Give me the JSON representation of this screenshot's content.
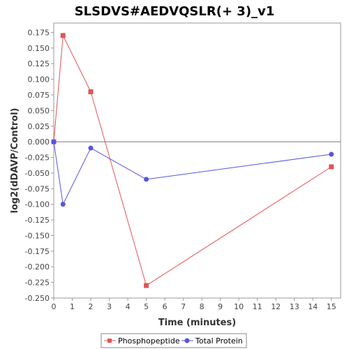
{
  "chart_data": {
    "type": "line",
    "title": "SLSDVS#AEDVQSLR(+ 3)_v1",
    "xlabel": "Time (minutes)",
    "ylabel": "log2(dDAVP/Control)",
    "xlim": [
      0,
      15.5
    ],
    "ylim": [
      -0.25,
      0.19
    ],
    "x_ticks": [
      0,
      1,
      2,
      3,
      4,
      5,
      6,
      7,
      8,
      9,
      10,
      11,
      12,
      13,
      14,
      15
    ],
    "x_tick_labels": [
      "0",
      "1",
      "2",
      "3",
      "4",
      "5",
      "6",
      "7",
      "8",
      "9",
      "10",
      "11",
      "12",
      "13",
      "14",
      "15"
    ],
    "y_ticks": [
      0.175,
      0.15,
      0.125,
      0.1,
      0.075,
      0.05,
      0.025,
      0,
      -0.025,
      -0.05,
      -0.075,
      -0.1,
      -0.125,
      -0.15,
      -0.175,
      -0.2,
      -0.225,
      -0.25
    ],
    "y_tick_labels": [
      "0.175",
      "0.150",
      "0.125",
      "0.100",
      "0.075",
      "0.050",
      "0.025",
      "0.000",
      "-0.025",
      "-0.050",
      "-0.075",
      "-0.100",
      "-0.125",
      "-0.150",
      "-0.175",
      "-0.200",
      "-0.225",
      "-0.250"
    ],
    "grid": false,
    "zero_line": true,
    "legend_position": "bottom",
    "series": [
      {
        "name": "Phosphopeptide",
        "color": "#e05555",
        "marker": "square",
        "x": [
          0,
          0.5,
          2,
          5,
          15
        ],
        "y": [
          0.0,
          0.17,
          0.08,
          -0.23,
          -0.04
        ]
      },
      {
        "name": "Total Protein",
        "color": "#5555e0",
        "marker": "circle",
        "x": [
          0,
          0.5,
          2,
          5,
          15
        ],
        "y": [
          0.0,
          -0.1,
          -0.01,
          -0.06,
          -0.02
        ]
      }
    ]
  }
}
